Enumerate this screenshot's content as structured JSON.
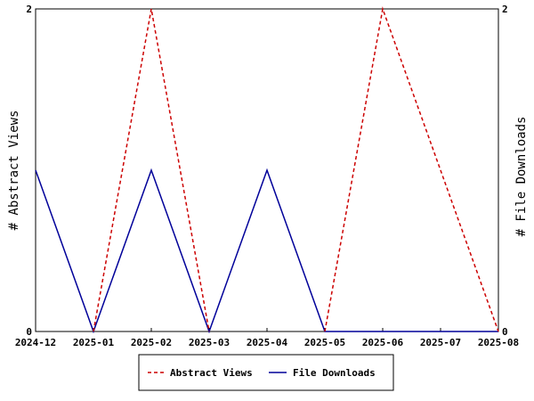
{
  "chart_data": {
    "type": "line",
    "x": [
      "2024-12",
      "2025-01",
      "2025-02",
      "2025-03",
      "2025-04",
      "2025-05",
      "2025-06",
      "2025-07",
      "2025-08"
    ],
    "series": [
      {
        "name": "Abstract Views",
        "axis": "left",
        "color": "#cc0000",
        "style": "dashed",
        "values": [
          null,
          0,
          2,
          0,
          null,
          0,
          2,
          1,
          0
        ]
      },
      {
        "name": "File Downloads",
        "axis": "right",
        "color": "#000099",
        "style": "solid",
        "values": [
          1,
          0,
          1,
          0,
          1,
          0,
          0,
          0,
          0
        ]
      }
    ],
    "ylabel_left": "# Abstract Views",
    "ylabel_right": "# File Downloads",
    "ylim_left": [
      0,
      2
    ],
    "ylim_right": [
      0,
      2
    ],
    "y_ticks_left": [
      "0",
      "2"
    ],
    "y_ticks_right": [
      "0",
      "2"
    ],
    "grid": false,
    "legend_position": "bottom-center"
  }
}
